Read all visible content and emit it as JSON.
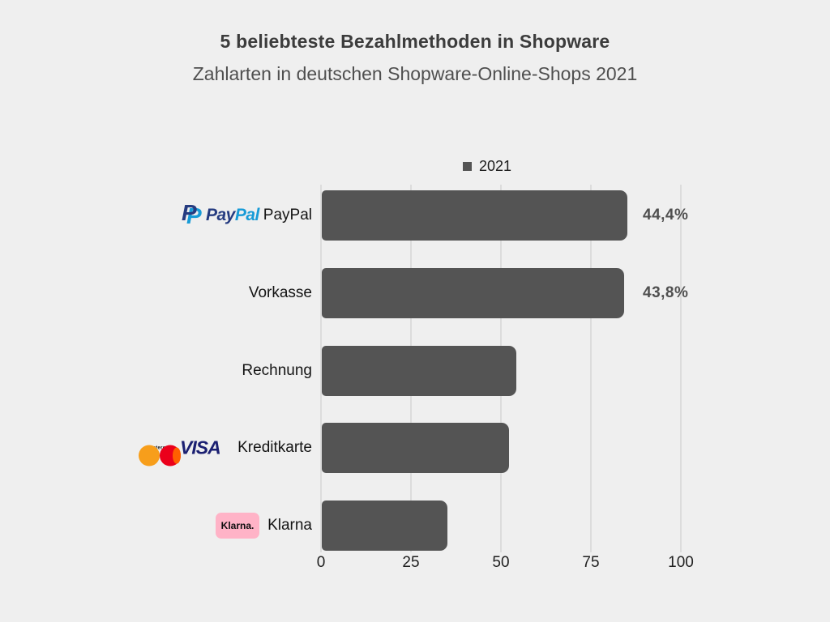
{
  "header": {
    "title": "5 beliebteste Bezahlmethoden in Shopware",
    "subtitle": "Zahlarten in deutschen Shopware-Online-Shops 2021"
  },
  "legend": {
    "label": "2021",
    "marker_color": "#545454"
  },
  "chart_data": {
    "type": "bar",
    "orientation": "horizontal",
    "title": "5 beliebteste Bezahlmethoden in Shopware",
    "subtitle": "Zahlarten in deutschen Shopware-Online-Shops 2021",
    "legend_entries": [
      "2021"
    ],
    "legend_position": "top-center",
    "grid": true,
    "categories": [
      "PayPal",
      "Vorkasse",
      "Rechnung",
      "Kreditkarte",
      "Klarna"
    ],
    "values": [
      85,
      84,
      54,
      52,
      35
    ],
    "bar_labels": [
      "44,4%",
      "43,8%",
      "",
      "",
      ""
    ],
    "xlabel": "",
    "ylabel": "",
    "xlim": [
      0,
      100
    ],
    "x_ticks": [
      "0",
      "25",
      "50",
      "75",
      "100"
    ],
    "bar_color": "#545454",
    "background_color": "#efefef",
    "gridline_color": "#dcdcdc"
  },
  "logos": {
    "paypal": {
      "monogram": "P",
      "word_part1": "Pay",
      "word_part2": "Pal",
      "navy": "#253B80",
      "blue": "#179BD7"
    },
    "mastercard": {
      "wordmark": "mastercard",
      "red": "#EB001B",
      "orange": "#F79E1B",
      "overlap": "#FF5F00"
    },
    "visa": {
      "wordmark": "VISA",
      "blue": "#1A1F71"
    },
    "klarna": {
      "wordmark": "Klarna.",
      "pink": "#FFB3C7",
      "text_color": "#0E0E0F"
    }
  }
}
